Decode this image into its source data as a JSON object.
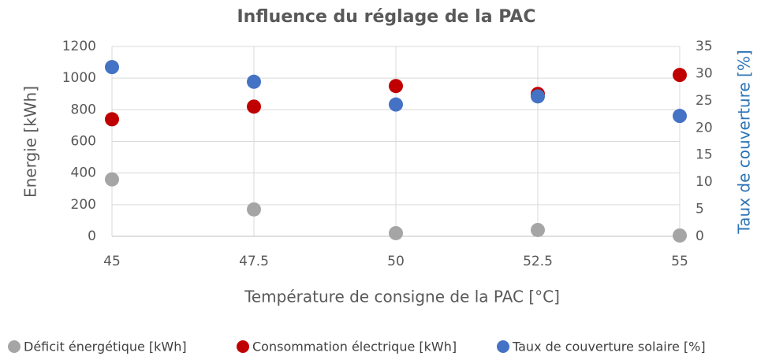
{
  "chart_data": {
    "type": "scatter",
    "title": "Influence du réglage de la PAC",
    "xlabel": "Température de consigne de la PAC [°C]",
    "ylabel": "Energie [kWh]",
    "y2label": "Taux de couverture [%]",
    "y2label_color": "#2e75b6",
    "x": [
      45,
      47.5,
      50,
      52.5,
      55
    ],
    "xlim": [
      45,
      55
    ],
    "xticks": [
      45,
      47.5,
      50,
      52.5,
      55
    ],
    "ylim": [
      0,
      1200
    ],
    "yticks": [
      0,
      200,
      400,
      600,
      800,
      1000,
      1200
    ],
    "y2lim": [
      0,
      35
    ],
    "y2ticks": [
      0,
      5,
      10,
      15,
      20,
      25,
      30,
      35
    ],
    "grid": true,
    "legend": "bottom",
    "series": [
      {
        "name": "Déficit énergétique [kWh]",
        "color": "#a5a5a5",
        "values": [
          360,
          170,
          20,
          40,
          5
        ]
      },
      {
        "name": "Consommation électrique [kWh]",
        "color": "#c00000",
        "values": [
          740,
          820,
          950,
          900,
          1020
        ]
      },
      {
        "name": "Taux de couverture solaire [%]",
        "color": "#4472c4",
        "axis": "y2",
        "values": [
          31.2,
          28.5,
          24.3,
          25.8,
          22.2
        ]
      }
    ]
  }
}
